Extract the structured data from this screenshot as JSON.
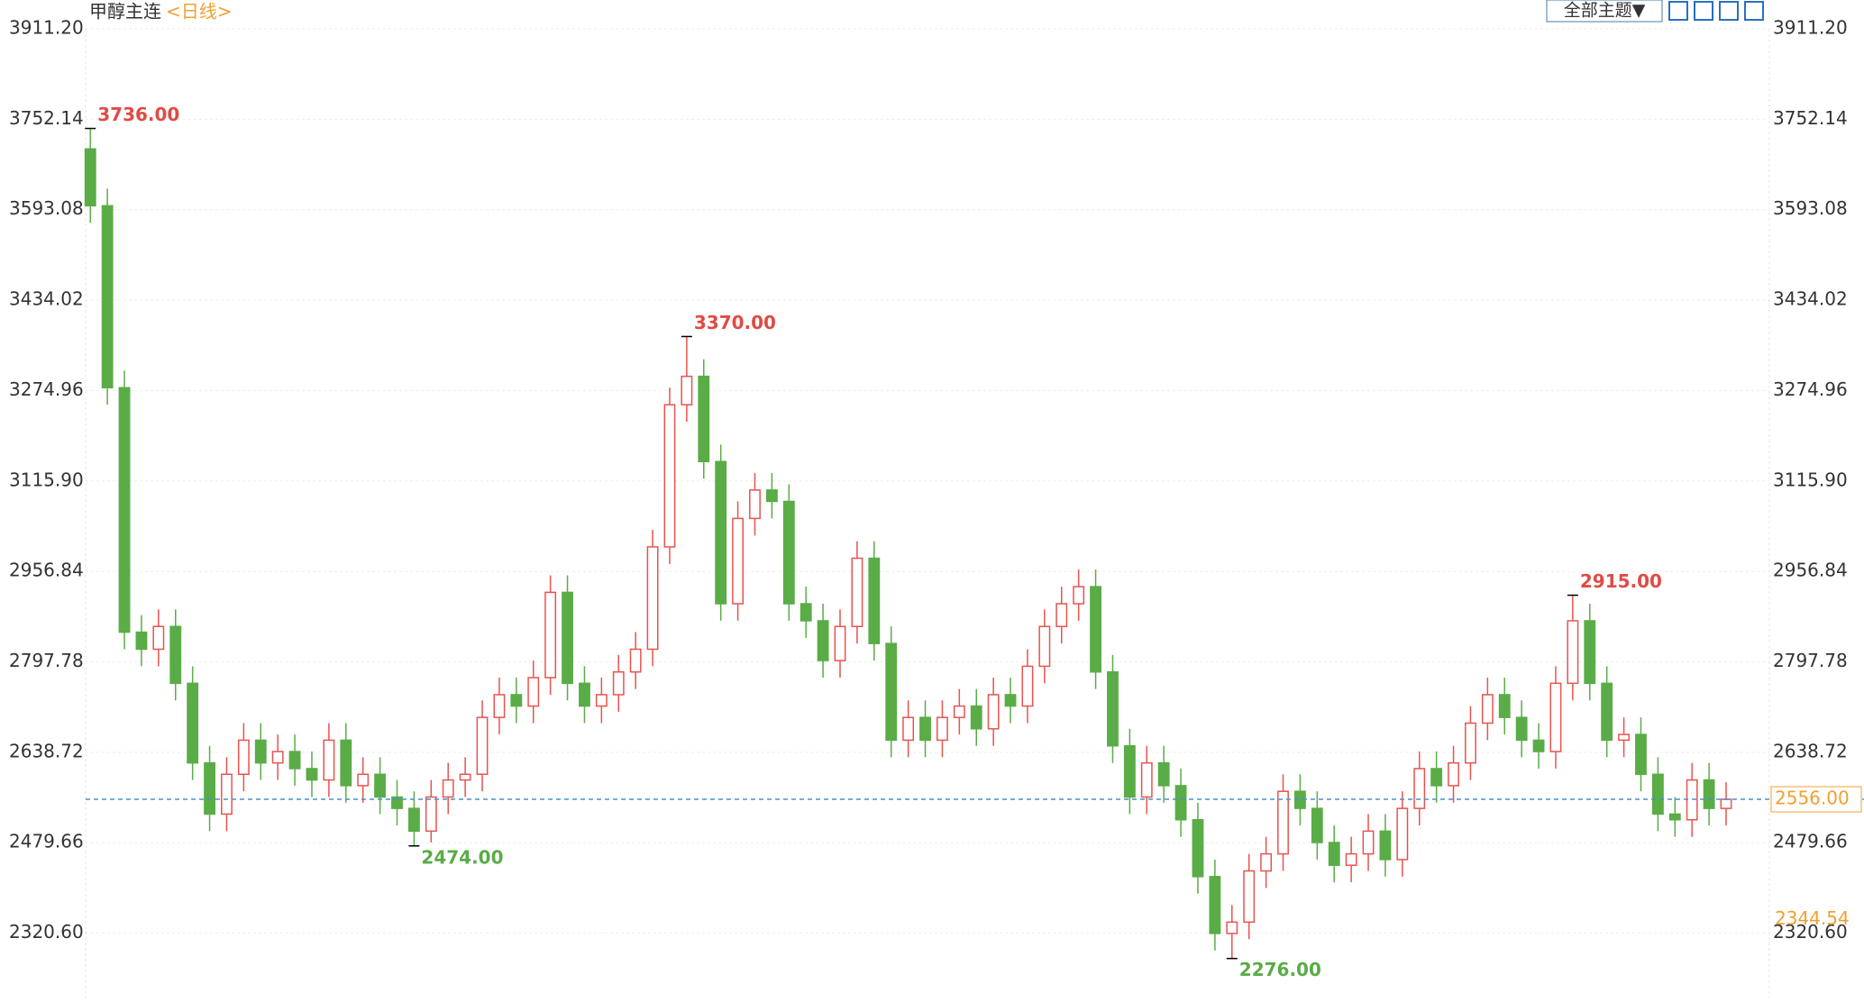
{
  "header": {
    "symbol": "甲醇主连",
    "period": "<日线>"
  },
  "toolbar": {
    "theme_button": "全部主题▼"
  },
  "chart_data": {
    "type": "candlestick",
    "up_color": "#e8534f",
    "down_color": "#5aac47",
    "high_label_color": "#e04b44",
    "low_label_color": "#5aac47",
    "ylim": [
      2205.8,
      3911.2
    ],
    "yticks": [
      {
        "value": 2320.6,
        "label": "2320.60"
      },
      {
        "value": 2479.66,
        "label": "2479.66"
      },
      {
        "value": 2638.72,
        "label": "2638.72"
      },
      {
        "value": 2797.78,
        "label": "2797.78"
      },
      {
        "value": 2956.84,
        "label": "2956.84"
      },
      {
        "value": 3115.9,
        "label": "3115.90"
      },
      {
        "value": 3274.96,
        "label": "3274.96"
      },
      {
        "value": 3434.02,
        "label": "3434.02"
      },
      {
        "value": 3593.08,
        "label": "3593.08"
      },
      {
        "value": 3752.14,
        "label": "3752.14"
      },
      {
        "value": 3911.2,
        "label": "3911.20"
      }
    ],
    "grid": true,
    "last_price": {
      "value": 2556,
      "label": "2556.00",
      "color": "#f0a030",
      "line_color": "#4a90c8"
    },
    "right_axis_marker": {
      "value": 2344.54,
      "label": "2344.54",
      "color": "#f0a030"
    },
    "extremes": [
      {
        "value": 3736,
        "label": "3736.00"
      },
      {
        "value": 3370,
        "label": "3370.00"
      },
      {
        "value": 2915,
        "label": "2915.00"
      },
      {
        "value": 2474,
        "label": "2474.00"
      },
      {
        "value": 2276,
        "label": "2276.00"
      }
    ],
    "open": [
      3700,
      3600,
      3280,
      2850,
      2820,
      2860,
      2760,
      2620,
      2530,
      2600,
      2660,
      2620,
      2640,
      2610,
      2590,
      2660,
      2580,
      2600,
      2560,
      2540,
      2500,
      2560,
      2590,
      2600,
      2700,
      2740,
      2720,
      2770,
      2920,
      2760,
      2720,
      2740,
      2780,
      2820,
      3000,
      3250,
      3300,
      3150,
      2900,
      3050,
      3100,
      3080,
      2900,
      2870,
      2800,
      2860,
      2980,
      2830,
      2660,
      2700,
      2660,
      2700,
      2720,
      2680,
      2740,
      2720,
      2790,
      2860,
      2900,
      2930,
      2780,
      2650,
      2560,
      2620,
      2580,
      2520,
      2420,
      2320,
      2340,
      2430,
      2460,
      2570,
      2540,
      2480,
      2440,
      2460,
      2500,
      2450,
      2540,
      2610,
      2580,
      2620,
      2690,
      2740,
      2700,
      2660,
      2640,
      2760,
      2870,
      2760,
      2660,
      2670,
      2600,
      2530,
      2520,
      2590,
      2540
    ],
    "high": [
      3736,
      3630,
      3310,
      2880,
      2890,
      2890,
      2790,
      2650,
      2630,
      2690,
      2690,
      2670,
      2670,
      2640,
      2690,
      2690,
      2630,
      2630,
      2590,
      2570,
      2590,
      2620,
      2630,
      2730,
      2770,
      2770,
      2800,
      2950,
      2950,
      2790,
      2770,
      2810,
      2850,
      3030,
      3280,
      3370,
      3330,
      3180,
      3080,
      3130,
      3130,
      3110,
      2930,
      2900,
      2890,
      3010,
      3010,
      2860,
      2730,
      2730,
      2730,
      2750,
      2750,
      2770,
      2770,
      2820,
      2890,
      2930,
      2960,
      2960,
      2810,
      2680,
      2650,
      2650,
      2610,
      2550,
      2450,
      2370,
      2460,
      2490,
      2600,
      2600,
      2570,
      2510,
      2490,
      2530,
      2530,
      2570,
      2640,
      2640,
      2650,
      2720,
      2770,
      2770,
      2730,
      2690,
      2790,
      2915,
      2900,
      2790,
      2700,
      2700,
      2630,
      2560,
      2620,
      2620,
      2586
    ],
    "low": [
      3570,
      3250,
      2820,
      2790,
      2790,
      2730,
      2590,
      2500,
      2500,
      2570,
      2590,
      2590,
      2580,
      2560,
      2560,
      2550,
      2550,
      2530,
      2510,
      2474,
      2480,
      2530,
      2560,
      2570,
      2670,
      2690,
      2690,
      2740,
      2730,
      2690,
      2690,
      2710,
      2750,
      2790,
      2970,
      3220,
      3120,
      2870,
      2870,
      3020,
      3050,
      2870,
      2840,
      2770,
      2770,
      2830,
      2800,
      2630,
      2630,
      2630,
      2630,
      2670,
      2650,
      2650,
      2690,
      2690,
      2760,
      2830,
      2870,
      2750,
      2620,
      2530,
      2530,
      2550,
      2490,
      2390,
      2290,
      2276,
      2310,
      2400,
      2430,
      2510,
      2450,
      2410,
      2410,
      2430,
      2420,
      2420,
      2510,
      2550,
      2550,
      2590,
      2660,
      2670,
      2630,
      2610,
      2610,
      2730,
      2730,
      2630,
      2630,
      2570,
      2500,
      2490,
      2490,
      2510,
      2510
    ],
    "close": [
      3600,
      3280,
      2850,
      2820,
      2860,
      2760,
      2620,
      2530,
      2600,
      2660,
      2620,
      2640,
      2610,
      2590,
      2660,
      2580,
      2600,
      2560,
      2540,
      2500,
      2560,
      2590,
      2600,
      2700,
      2740,
      2720,
      2770,
      2920,
      2760,
      2720,
      2740,
      2780,
      2820,
      3000,
      3250,
      3300,
      3150,
      2900,
      3050,
      3100,
      3080,
      2900,
      2870,
      2800,
      2860,
      2980,
      2830,
      2660,
      2700,
      2660,
      2700,
      2720,
      2680,
      2740,
      2720,
      2790,
      2860,
      2900,
      2930,
      2780,
      2650,
      2560,
      2620,
      2580,
      2520,
      2420,
      2320,
      2340,
      2430,
      2460,
      2570,
      2540,
      2480,
      2440,
      2460,
      2500,
      2450,
      2540,
      2610,
      2580,
      2620,
      2690,
      2740,
      2700,
      2660,
      2640,
      2760,
      2870,
      2760,
      2660,
      2670,
      2600,
      2530,
      2520,
      2590,
      2540,
      2556
    ]
  }
}
